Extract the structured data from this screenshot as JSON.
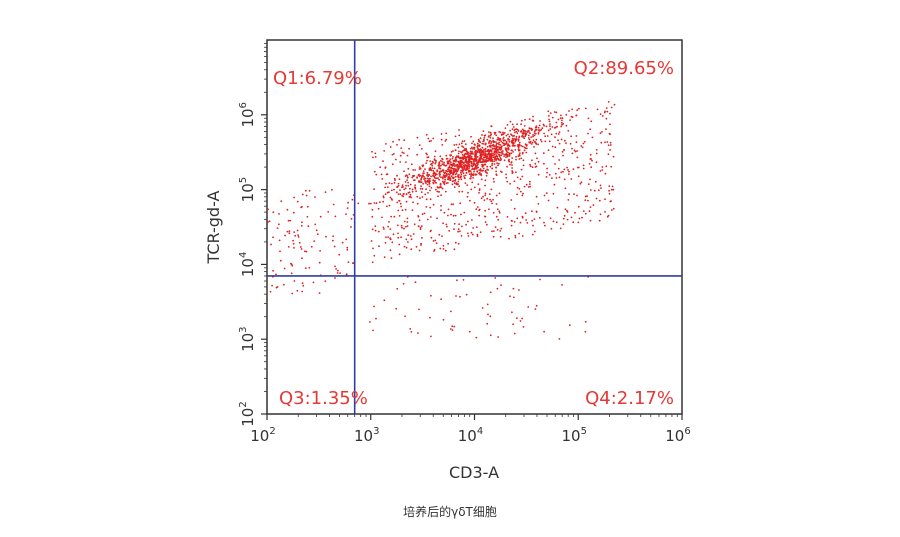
{
  "chart_data": {
    "type": "scatter",
    "xlabel": "CD3-A",
    "ylabel": "TCR-gd-A",
    "x_scale": "log",
    "y_scale": "log",
    "xlim": [
      100,
      1000000
    ],
    "ylim": [
      100,
      10000000
    ],
    "x_ticks": [
      {
        "base": "10",
        "exp": "2"
      },
      {
        "base": "10",
        "exp": "3"
      },
      {
        "base": "10",
        "exp": "4"
      },
      {
        "base": "10",
        "exp": "5"
      },
      {
        "base": "10",
        "exp": "6"
      }
    ],
    "y_ticks": [
      {
        "base": "10",
        "exp": "2"
      },
      {
        "base": "10",
        "exp": "3"
      },
      {
        "base": "10",
        "exp": "4"
      },
      {
        "base": "10",
        "exp": "5"
      },
      {
        "base": "10",
        "exp": "6"
      }
    ],
    "gate_x": 700,
    "gate_y": 7000,
    "quadrants": [
      {
        "name": "Q1",
        "label": "Q1:6.79%",
        "percent": 6.79,
        "position": "top-left"
      },
      {
        "name": "Q2",
        "label": "Q2:89.65%",
        "percent": 89.65,
        "position": "top-right"
      },
      {
        "name": "Q3",
        "label": "Q3:1.35%",
        "percent": 1.35,
        "position": "bottom-left"
      },
      {
        "name": "Q4",
        "label": "Q4:2.17%",
        "percent": 2.17,
        "position": "bottom-right"
      }
    ],
    "point_color": "#e02020",
    "gate_color": "#2e3fa0",
    "label_color": "#e53935",
    "point_count": 2000,
    "population": {
      "center_x_log10": 4.0,
      "center_y_log10": 5.4
    }
  },
  "caption": "培养后的γδT细胞"
}
